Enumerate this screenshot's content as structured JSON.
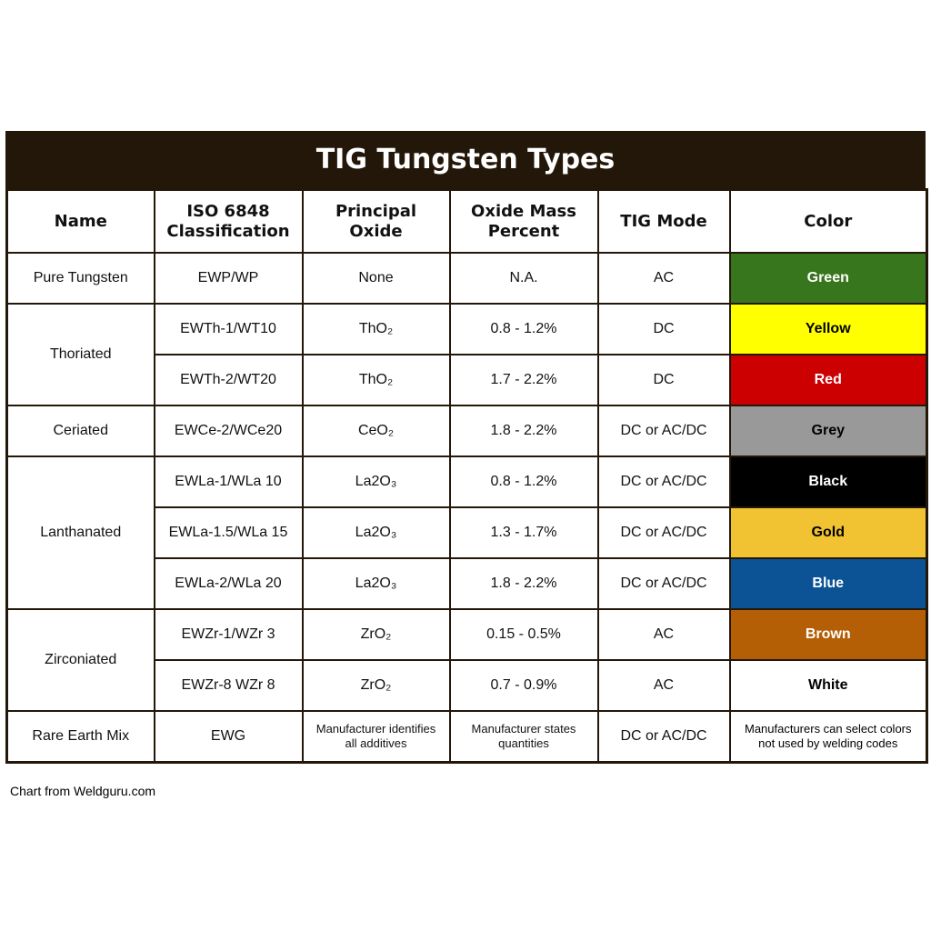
{
  "title": "TIG Tungsten Types",
  "headers": [
    "Name",
    "ISO 6848\nClassification",
    "Principal\nOxide",
    "Oxide Mass\nPercent",
    "TIG Mode",
    "Color"
  ],
  "groups": [
    {
      "name": "Pure Tungsten",
      "rows": [
        {
          "iso": "EWP/WP",
          "oxide": "None",
          "percent": "N.A.",
          "mode": "AC",
          "color": {
            "label": "Green",
            "fill": "#38761d",
            "text": "#ffffff"
          }
        }
      ]
    },
    {
      "name": "Thoriated",
      "rows": [
        {
          "iso": "EWTh-1/WT10",
          "oxide": "ThO₂",
          "percent": "0.8 - 1.2%",
          "mode": "DC",
          "color": {
            "label": "Yellow",
            "fill": "#ffff00",
            "text": "#000000"
          }
        },
        {
          "iso": "EWTh-2/WT20",
          "oxide": "ThO₂",
          "percent": "1.7 - 2.2%",
          "mode": "DC",
          "color": {
            "label": "Red",
            "fill": "#cc0000",
            "text": "#ffffff"
          }
        }
      ]
    },
    {
      "name": "Ceriated",
      "rows": [
        {
          "iso": "EWCe-2/WCe20",
          "oxide": "CeO₂",
          "percent": "1.8 - 2.2%",
          "mode": "DC or AC/DC",
          "color": {
            "label": "Grey",
            "fill": "#999999",
            "text": "#000000"
          }
        }
      ]
    },
    {
      "name": "Lanthanated",
      "rows": [
        {
          "iso": "EWLa-1/WLa 10",
          "oxide": "La2O₃",
          "percent": "0.8 - 1.2%",
          "mode": "DC or AC/DC",
          "color": {
            "label": "Black",
            "fill": "#000000",
            "text": "#ffffff"
          }
        },
        {
          "iso": "EWLa-1.5/WLa 15",
          "oxide": "La2O₃",
          "percent": "1.3 - 1.7%",
          "mode": "DC or AC/DC",
          "color": {
            "label": "Gold",
            "fill": "#f1c232",
            "text": "#000000"
          }
        },
        {
          "iso": "EWLa-2/WLa 20",
          "oxide": "La2O₃",
          "percent": "1.8 - 2.2%",
          "mode": "DC or AC/DC",
          "color": {
            "label": "Blue",
            "fill": "#0b5394",
            "text": "#ffffff"
          }
        }
      ]
    },
    {
      "name": "Zirconiated",
      "rows": [
        {
          "iso": "EWZr-1/WZr 3",
          "oxide": "ZrO₂",
          "percent": "0.15 - 0.5%",
          "mode": "AC",
          "color": {
            "label": "Brown",
            "fill": "#b45f06",
            "text": "#ffffff"
          }
        },
        {
          "iso": "EWZr-8 WZr 8",
          "oxide": "ZrO₂",
          "percent": "0.7 - 0.9%",
          "mode": "AC",
          "color": {
            "label": "White",
            "fill": "#ffffff",
            "text": "#000000"
          }
        }
      ]
    },
    {
      "name": "Rare Earth Mix",
      "rows": [
        {
          "iso": "EWG",
          "oxide": "Manufacturer identifies\nall additives",
          "percent": "Manufacturer states\nquantities",
          "mode": "DC or AC/DC",
          "color": {
            "label": "Manufacturers can select colors\nnot used by welding codes",
            "fill": "#ffffff",
            "text": "#000000"
          }
        }
      ]
    }
  ],
  "footer": "Chart from Weldguru.com"
}
